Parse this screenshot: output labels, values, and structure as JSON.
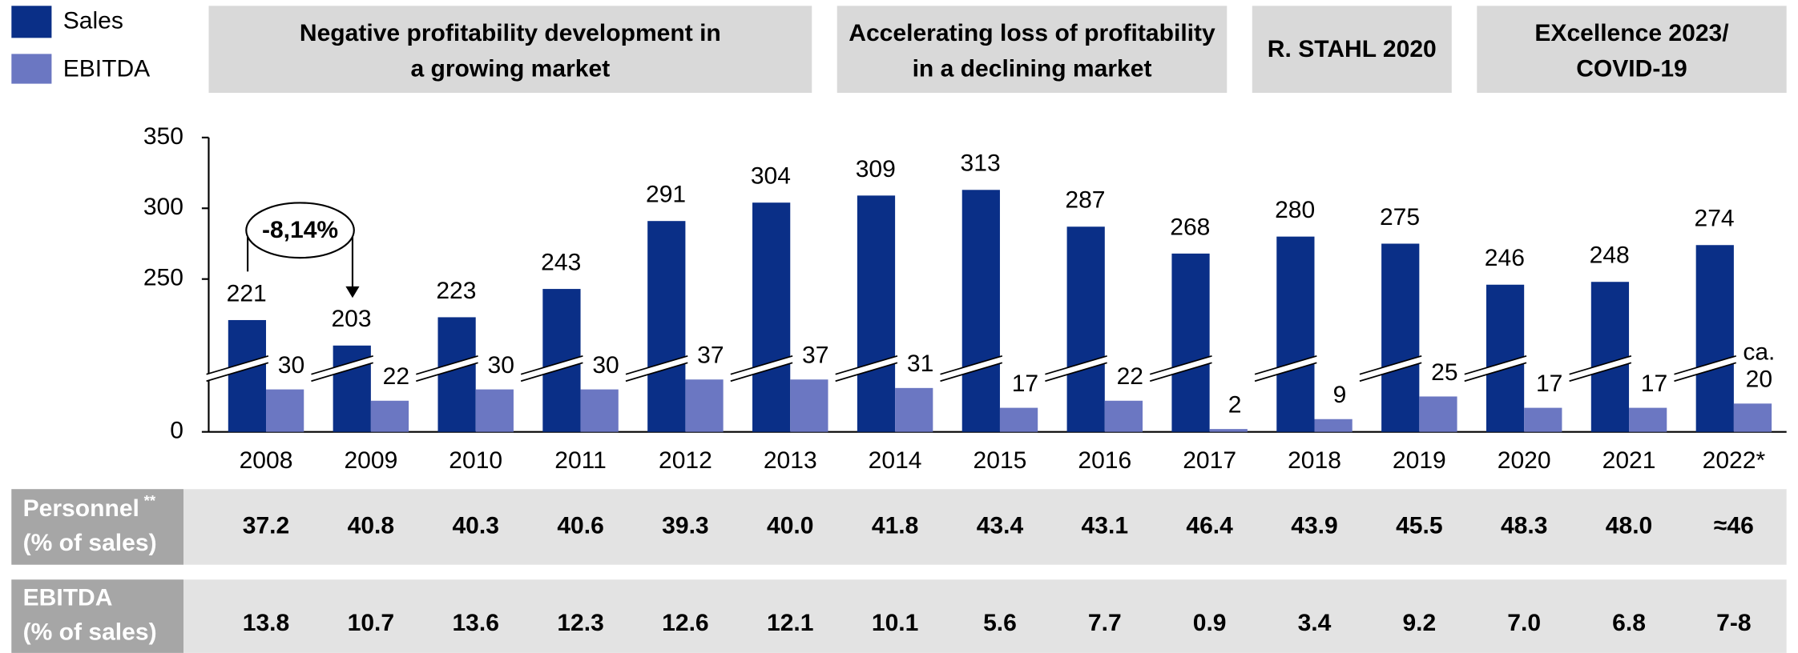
{
  "chart_data": {
    "type": "bar",
    "categories": [
      "2008",
      "2009",
      "2010",
      "2011",
      "2012",
      "2013",
      "2014",
      "2015",
      "2016",
      "2017",
      "2018",
      "2019",
      "2020",
      "2021",
      "2022*"
    ],
    "series": [
      {
        "name": "Sales",
        "color": "#0a2f87",
        "values": [
          221,
          203,
          223,
          243,
          291,
          304,
          309,
          313,
          287,
          268,
          280,
          275,
          246,
          248,
          274
        ]
      },
      {
        "name": "EBITDA",
        "color": "#6b77c2",
        "values": [
          30,
          22,
          30,
          30,
          37,
          37,
          31,
          17,
          22,
          2,
          9,
          25,
          17,
          17,
          20
        ],
        "value_labels": [
          "30",
          "22",
          "30",
          "30",
          "37",
          "37",
          "31",
          "17",
          "22",
          "2",
          "9",
          "25",
          "17",
          "17",
          "ca. 20"
        ]
      }
    ],
    "ylim": [
      0,
      350
    ],
    "yticks": [
      0,
      250,
      300,
      350
    ],
    "axis_break": [
      48,
      190
    ],
    "annotation": "-8,14%",
    "periods": [
      [
        "Negative profitability development in",
        "a growing market"
      ],
      [
        "Accelerating loss of profitability",
        "in a declining market"
      ],
      [
        "R. STAHL 2020"
      ],
      [
        "EXcellence 2023/",
        "COVID-19"
      ]
    ]
  },
  "table": {
    "rows": [
      {
        "label": [
          "Personnel",
          "(% of sales)"
        ],
        "note_mark": "**",
        "values": [
          "37.2",
          "40.8",
          "40.3",
          "40.6",
          "39.3",
          "40.0",
          "41.8",
          "43.4",
          "43.1",
          "46.4",
          "43.9",
          "45.5",
          "48.3",
          "48.0",
          "≈46"
        ]
      },
      {
        "label": [
          "EBITDA",
          "(% of sales)"
        ],
        "values": [
          "13.8",
          "10.7",
          "13.6",
          "12.3",
          "12.6",
          "12.1",
          "10.1",
          "5.6",
          "7.7",
          "0.9",
          "3.4",
          "9.2",
          "7.0",
          "6.8",
          "7-8"
        ]
      }
    ]
  }
}
